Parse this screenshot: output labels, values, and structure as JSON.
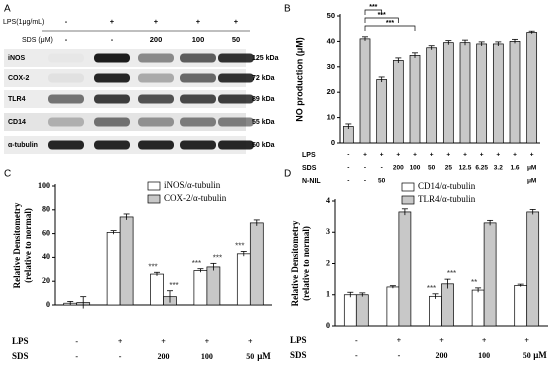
{
  "panel_labels": [
    "A",
    "B",
    "C",
    "D"
  ],
  "blot": {
    "header_rows": [
      {
        "label": "LPS(1μg/mL)",
        "cells": [
          "-",
          "+",
          "+",
          "+",
          "+"
        ]
      },
      {
        "label": "SDS (μM)",
        "cells": [
          "-",
          "-",
          "200",
          "100",
          "50"
        ]
      }
    ],
    "rows": [
      {
        "protein": "iNOS",
        "size": "125 kDa"
      },
      {
        "protein": "COX-2",
        "size": "72 kDa"
      },
      {
        "protein": "TLR4",
        "size": "89 kDa"
      },
      {
        "protein": "CD14",
        "size": "55 kDa"
      },
      {
        "protein": "α-tubulin",
        "size": "50 kDa"
      }
    ]
  },
  "chart_data": [
    {
      "type": "bar",
      "y_label": "NO production (μM)",
      "ylim": [
        0,
        50
      ],
      "yticks": [
        0,
        10,
        20,
        30,
        40,
        50
      ],
      "series": [
        {
          "color": "#c8c8c8",
          "values": [
            6.5,
            41,
            25,
            32.5,
            34.5,
            37.5,
            39.5,
            39.5,
            39,
            39,
            40,
            43.5
          ],
          "errors": [
            1,
            0.8,
            1,
            1,
            1,
            0.8,
            0.8,
            1,
            0.8,
            0.8,
            0.8,
            0.5
          ]
        }
      ],
      "brackets": [
        "***",
        "***",
        "***"
      ],
      "condition_rows": [
        {
          "label": "LPS",
          "cells": [
            "-",
            "+",
            "+",
            "+",
            "+",
            "+",
            "+",
            "+",
            "+",
            "+",
            "+",
            "+"
          ]
        },
        {
          "label": "SDS",
          "cells": [
            "-",
            "-",
            "-",
            "200",
            "100",
            "50",
            "25",
            "12.5",
            "6.25",
            "3.2",
            "1.6",
            "μM"
          ]
        },
        {
          "label": "N-NIL",
          "cells": [
            "-",
            "-",
            "50",
            null,
            null,
            null,
            null,
            null,
            null,
            null,
            null,
            "μM"
          ]
        }
      ]
    },
    {
      "type": "bar",
      "y_label": [
        "Relative Densitometry",
        "(relative to normal)"
      ],
      "ylim": [
        0,
        100
      ],
      "yticks": [
        0,
        20,
        40,
        60,
        80,
        100
      ],
      "series": [
        {
          "name": "iNOS/α-tubulin",
          "color": "#ffffff",
          "values": [
            1.5,
            61,
            26,
            29,
            43
          ],
          "errors": [
            1.5,
            1.5,
            1.5,
            1.5,
            2
          ],
          "annotations": [
            null,
            null,
            "***",
            "***",
            "***"
          ]
        },
        {
          "name": "COX-2/α-tubulin",
          "color": "#c8c8c8",
          "values": [
            2,
            74,
            7,
            32,
            69
          ],
          "errors": [
            5,
            2.5,
            5,
            3,
            2.5
          ],
          "annotations": [
            null,
            null,
            "***",
            "***",
            null
          ]
        }
      ],
      "condition_rows": [
        {
          "label": "LPS",
          "cells": [
            "-",
            "+",
            "+",
            "+",
            "+"
          ]
        },
        {
          "label": "SDS",
          "cells": [
            "-",
            "-",
            "200",
            "100",
            "50"
          ]
        }
      ],
      "unit": "μM"
    },
    {
      "type": "bar",
      "y_label": [
        "Relative Densitometry",
        "(relative to normal)"
      ],
      "ylim": [
        0,
        4
      ],
      "yticks": [
        0,
        1,
        2,
        3,
        4
      ],
      "series": [
        {
          "name": "CD14/α-tubulin",
          "color": "#ffffff",
          "values": [
            1.0,
            1.25,
            0.95,
            1.15,
            1.3
          ],
          "errors": [
            0.08,
            0.04,
            0.08,
            0.07,
            0.04
          ],
          "annotations": [
            null,
            null,
            "***",
            "**",
            null
          ]
        },
        {
          "name": "TLR4/α-tubulin",
          "color": "#c8c8c8",
          "values": [
            1.0,
            3.65,
            1.35,
            3.3,
            3.65
          ],
          "errors": [
            0.06,
            0.1,
            0.15,
            0.08,
            0.08
          ],
          "annotations": [
            null,
            null,
            "***",
            null,
            null
          ]
        }
      ],
      "condition_rows": [
        {
          "label": "LPS",
          "cells": [
            "-",
            "+",
            "+",
            "+",
            "+"
          ]
        },
        {
          "label": "SDS",
          "cells": [
            "-",
            "-",
            "200",
            "100",
            "50"
          ]
        }
      ],
      "unit": "μM"
    }
  ]
}
